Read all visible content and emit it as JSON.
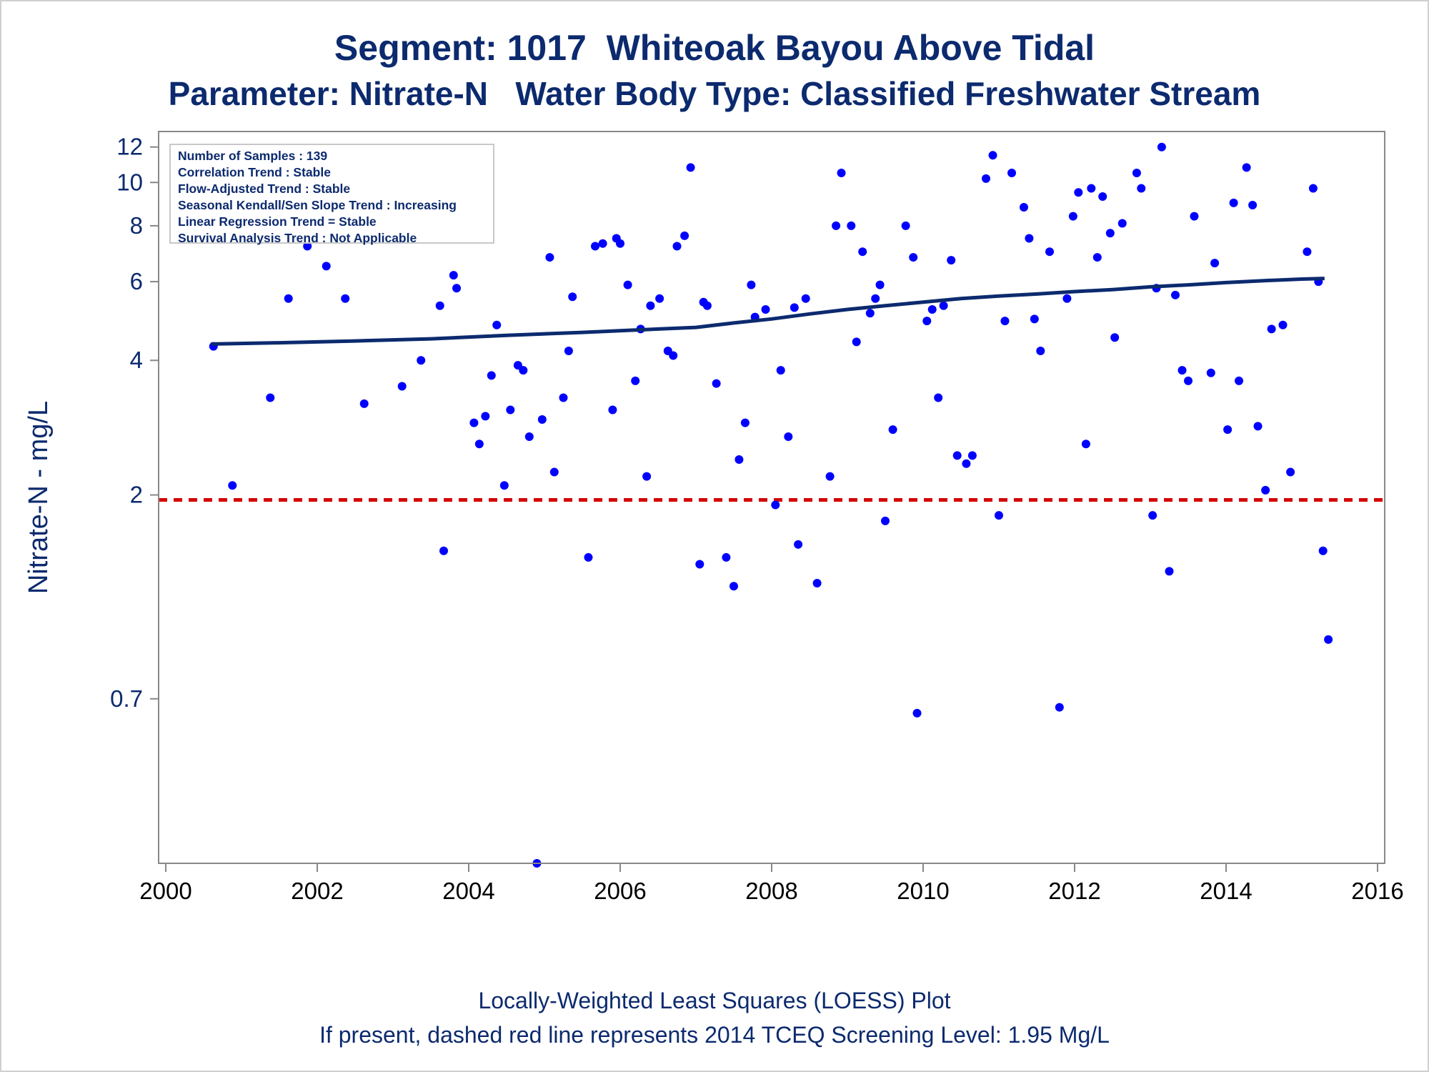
{
  "title": "Segment: 1017  Whiteoak Bayou Above Tidal",
  "subtitle": "Parameter: Nitrate-N   Water Body Type: Classified Freshwater Stream",
  "stats_box": [
    "Number of Samples : 139",
    "Correlation Trend : Stable",
    "Flow-Adjusted Trend : Stable",
    "Seasonal Kendall/Sen Slope Trend : Increasing",
    "Linear Regression Trend = Stable",
    "Survival Analysis Trend : Not Applicable"
  ],
  "footnote_1": "Locally-Weighted Least Squares (LOESS) Plot",
  "footnote_2": "If present, dashed red line represents 2014 TCEQ Screening Level: 1.95 Mg/L",
  "colors": {
    "text": "#0c2a6e",
    "points": "#0000ff",
    "loess": "#0c2a6e",
    "screening": "#d40000",
    "axis": "#888888"
  },
  "chart_data": {
    "type": "scatter",
    "ylabel": "Nitrate-N - mg/L",
    "xlabel": "",
    "yscale": "log",
    "xlim": [
      2000,
      2016
    ],
    "ylim": [
      0.3,
      13
    ],
    "x_ticks": [
      2000,
      2002,
      2004,
      2006,
      2008,
      2010,
      2012,
      2014,
      2016
    ],
    "y_ticks": [
      0.7,
      2,
      4,
      6,
      8,
      10,
      12
    ],
    "y_tick_labels": [
      "0.7",
      "2",
      "4",
      "6",
      "8",
      "10",
      "12"
    ],
    "screening_level": 1.95,
    "points": [
      [
        2000.63,
        4.3
      ],
      [
        2000.88,
        2.1
      ],
      [
        2001.13,
        8.5
      ],
      [
        2001.38,
        3.3
      ],
      [
        2001.62,
        5.5
      ],
      [
        2001.87,
        7.2
      ],
      [
        2002.12,
        6.5
      ],
      [
        2002.37,
        5.5
      ],
      [
        2002.62,
        3.2
      ],
      [
        2002.88,
        7.9
      ],
      [
        2003.12,
        3.5
      ],
      [
        2003.37,
        4.0
      ],
      [
        2003.62,
        5.3
      ],
      [
        2003.67,
        1.5
      ],
      [
        2003.8,
        6.2
      ],
      [
        2003.84,
        5.8
      ],
      [
        2003.92,
        7.5
      ],
      [
        2004.07,
        2.9
      ],
      [
        2004.14,
        2.6
      ],
      [
        2004.22,
        3.0
      ],
      [
        2004.3,
        3.7
      ],
      [
        2004.37,
        4.8
      ],
      [
        2004.47,
        2.1
      ],
      [
        2004.55,
        3.1
      ],
      [
        2004.65,
        3.9
      ],
      [
        2004.72,
        3.8
      ],
      [
        2004.8,
        2.7
      ],
      [
        2004.9,
        0.3
      ],
      [
        2004.97,
        2.95
      ],
      [
        2005.07,
        6.8
      ],
      [
        2005.13,
        2.25
      ],
      [
        2005.25,
        3.3
      ],
      [
        2005.32,
        4.2
      ],
      [
        2005.37,
        5.55
      ],
      [
        2005.58,
        1.45
      ],
      [
        2005.67,
        7.2
      ],
      [
        2005.77,
        7.3
      ],
      [
        2005.9,
        3.1
      ],
      [
        2005.95,
        7.5
      ],
      [
        2006.0,
        7.3
      ],
      [
        2006.1,
        5.9
      ],
      [
        2006.2,
        3.6
      ],
      [
        2006.27,
        4.7
      ],
      [
        2006.35,
        2.2
      ],
      [
        2006.4,
        5.3
      ],
      [
        2006.52,
        5.5
      ],
      [
        2006.63,
        4.2
      ],
      [
        2006.7,
        4.1
      ],
      [
        2006.75,
        7.2
      ],
      [
        2006.85,
        7.6
      ],
      [
        2006.93,
        10.8
      ],
      [
        2007.05,
        1.4
      ],
      [
        2007.1,
        5.4
      ],
      [
        2007.15,
        5.3
      ],
      [
        2007.27,
        3.55
      ],
      [
        2007.4,
        1.45
      ],
      [
        2007.5,
        1.25
      ],
      [
        2007.57,
        2.4
      ],
      [
        2007.65,
        2.9
      ],
      [
        2007.73,
        5.9
      ],
      [
        2007.78,
        5.0
      ],
      [
        2007.92,
        5.2
      ],
      [
        2008.05,
        1.9
      ],
      [
        2008.12,
        3.8
      ],
      [
        2008.22,
        2.7
      ],
      [
        2008.3,
        5.25
      ],
      [
        2008.35,
        1.55
      ],
      [
        2008.45,
        5.5
      ],
      [
        2008.6,
        1.27
      ],
      [
        2008.77,
        2.2
      ],
      [
        2008.85,
        8.0
      ],
      [
        2008.92,
        10.5
      ],
      [
        2009.05,
        8.0
      ],
      [
        2009.12,
        4.4
      ],
      [
        2009.2,
        7.0
      ],
      [
        2009.3,
        5.1
      ],
      [
        2009.37,
        5.5
      ],
      [
        2009.43,
        5.9
      ],
      [
        2009.5,
        1.75
      ],
      [
        2009.6,
        2.8
      ],
      [
        2009.77,
        8.0
      ],
      [
        2009.87,
        6.8
      ],
      [
        2009.92,
        0.65
      ],
      [
        2010.05,
        4.9
      ],
      [
        2010.12,
        5.2
      ],
      [
        2010.2,
        3.3
      ],
      [
        2010.27,
        5.3
      ],
      [
        2010.37,
        6.7
      ],
      [
        2010.45,
        2.45
      ],
      [
        2010.57,
        2.35
      ],
      [
        2010.65,
        2.45
      ],
      [
        2010.83,
        10.2
      ],
      [
        2010.92,
        11.5
      ],
      [
        2011.0,
        1.8
      ],
      [
        2011.08,
        4.9
      ],
      [
        2011.17,
        10.5
      ],
      [
        2011.33,
        8.8
      ],
      [
        2011.4,
        7.5
      ],
      [
        2011.47,
        4.95
      ],
      [
        2011.55,
        4.2
      ],
      [
        2011.67,
        7.0
      ],
      [
        2011.8,
        0.67
      ],
      [
        2011.9,
        5.5
      ],
      [
        2011.98,
        8.4
      ],
      [
        2012.05,
        9.5
      ],
      [
        2012.15,
        2.6
      ],
      [
        2012.22,
        9.7
      ],
      [
        2012.3,
        6.8
      ],
      [
        2012.37,
        9.3
      ],
      [
        2012.47,
        7.7
      ],
      [
        2012.53,
        4.5
      ],
      [
        2012.63,
        8.1
      ],
      [
        2012.82,
        10.5
      ],
      [
        2012.88,
        9.7
      ],
      [
        2013.03,
        1.8
      ],
      [
        2013.08,
        5.8
      ],
      [
        2013.15,
        12.0
      ],
      [
        2013.25,
        1.35
      ],
      [
        2013.33,
        5.6
      ],
      [
        2013.42,
        3.8
      ],
      [
        2013.5,
        3.6
      ],
      [
        2013.58,
        8.4
      ],
      [
        2013.8,
        3.75
      ],
      [
        2013.85,
        6.6
      ],
      [
        2014.02,
        2.8
      ],
      [
        2014.1,
        9.0
      ],
      [
        2014.17,
        3.6
      ],
      [
        2014.27,
        10.8
      ],
      [
        2014.35,
        8.9
      ],
      [
        2014.42,
        2.85
      ],
      [
        2014.52,
        2.05
      ],
      [
        2014.6,
        4.7
      ],
      [
        2014.75,
        4.8
      ],
      [
        2014.85,
        2.25
      ],
      [
        2015.07,
        7.0
      ],
      [
        2015.15,
        9.7
      ],
      [
        2015.22,
        6.0
      ],
      [
        2015.28,
        1.5
      ],
      [
        2015.35,
        0.95
      ]
    ],
    "loess": [
      [
        2000.6,
        4.35
      ],
      [
        2001.5,
        4.38
      ],
      [
        2002.5,
        4.42
      ],
      [
        2003.5,
        4.47
      ],
      [
        2004.5,
        4.55
      ],
      [
        2005.5,
        4.62
      ],
      [
        2006.5,
        4.7
      ],
      [
        2007.0,
        4.74
      ],
      [
        2007.5,
        4.85
      ],
      [
        2008.0,
        4.95
      ],
      [
        2008.5,
        5.08
      ],
      [
        2009.0,
        5.2
      ],
      [
        2009.5,
        5.3
      ],
      [
        2010.0,
        5.4
      ],
      [
        2010.5,
        5.5
      ],
      [
        2011.0,
        5.57
      ],
      [
        2011.5,
        5.63
      ],
      [
        2012.0,
        5.7
      ],
      [
        2012.5,
        5.76
      ],
      [
        2013.0,
        5.84
      ],
      [
        2013.5,
        5.9
      ],
      [
        2014.0,
        5.97
      ],
      [
        2014.5,
        6.03
      ],
      [
        2015.0,
        6.08
      ],
      [
        2015.3,
        6.1
      ]
    ]
  }
}
